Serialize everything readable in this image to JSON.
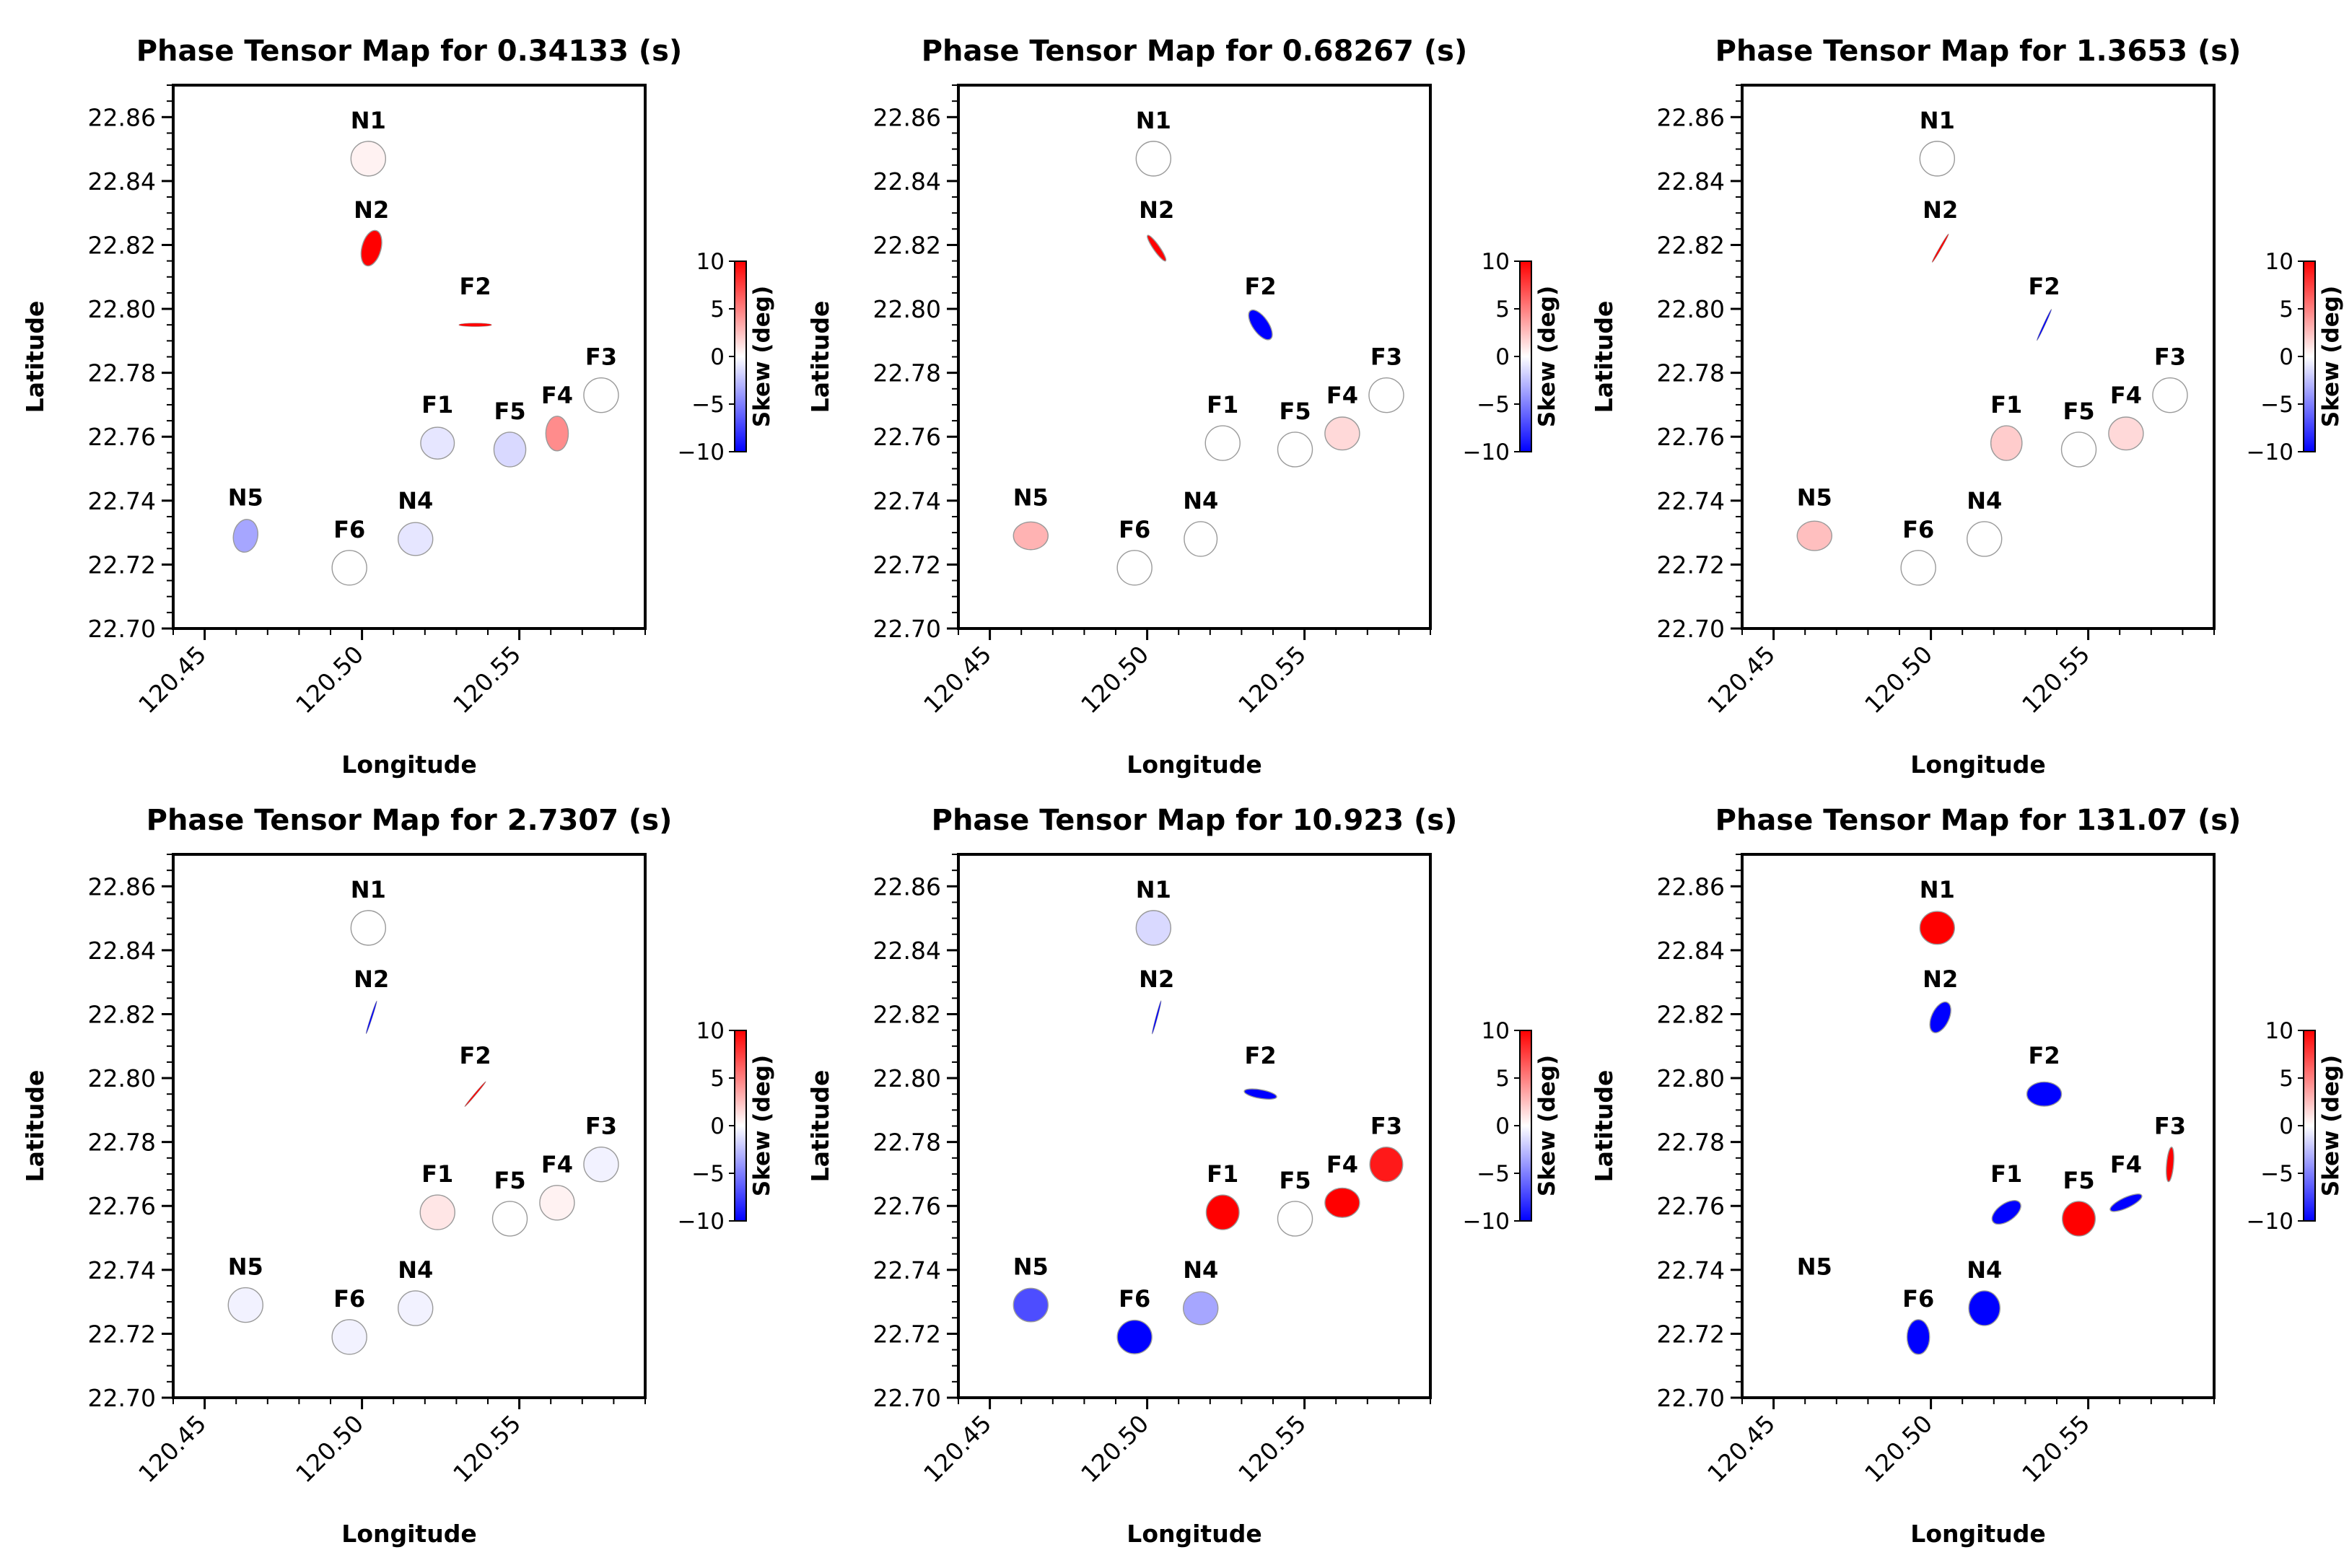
{
  "chart_data": {
    "type": "scatter",
    "shared": {
      "xlabel": "Longitude",
      "ylabel": "Latitude",
      "xlim": [
        120.44,
        120.59
      ],
      "ylim": [
        22.7,
        22.87
      ],
      "xticks": [
        120.45,
        120.5,
        120.55
      ],
      "xtick_labels": [
        "120.45",
        "120.50",
        "120.55"
      ],
      "yticks": [
        22.7,
        22.72,
        22.74,
        22.76,
        22.78,
        22.8,
        22.82,
        22.84,
        22.86
      ],
      "ytick_labels": [
        "22.70",
        "22.72",
        "22.74",
        "22.76",
        "22.78",
        "22.80",
        "22.82",
        "22.84",
        "22.86"
      ],
      "colorbar": {
        "label": "Skew (deg)",
        "range": [
          -10,
          10
        ],
        "ticks": [
          10,
          5,
          0,
          -5,
          -10
        ],
        "tick_labels": [
          "10",
          "5",
          "0",
          "−5",
          "−10"
        ],
        "colormap": [
          "#0000ff",
          "#ffffff",
          "#ff0000"
        ]
      },
      "stations": [
        {
          "name": "N1",
          "lon": 120.502,
          "lat": 22.847
        },
        {
          "name": "N2",
          "lon": 120.503,
          "lat": 22.819
        },
        {
          "name": "F2",
          "lon": 120.536,
          "lat": 22.795
        },
        {
          "name": "F3",
          "lon": 120.576,
          "lat": 22.773
        },
        {
          "name": "F1",
          "lon": 120.524,
          "lat": 22.758
        },
        {
          "name": "F5",
          "lon": 120.547,
          "lat": 22.756
        },
        {
          "name": "F4",
          "lon": 120.562,
          "lat": 22.761
        },
        {
          "name": "N5",
          "lon": 120.463,
          "lat": 22.729
        },
        {
          "name": "F6",
          "lon": 120.496,
          "lat": 22.719
        },
        {
          "name": "N4",
          "lon": 120.517,
          "lat": 22.728
        }
      ]
    },
    "panels": [
      {
        "title": "Phase Tensor Map for 0.34133 (s)",
        "period_s": 0.34133,
        "ellipses": [
          {
            "station": "N1",
            "skew": 0.5,
            "major": 1.0,
            "minor": 1.0,
            "angle": 0
          },
          {
            "station": "N2",
            "skew": 10,
            "major": 1.05,
            "minor": 0.55,
            "angle": 75
          },
          {
            "station": "F2",
            "skew": 10,
            "major": 0.95,
            "minor": 0.1,
            "angle": 0
          },
          {
            "station": "F3",
            "skew": 0,
            "major": 1.0,
            "minor": 1.0,
            "angle": 0
          },
          {
            "station": "F1",
            "skew": -1,
            "major": 0.97,
            "minor": 0.92,
            "angle": 0
          },
          {
            "station": "F5",
            "skew": -1.5,
            "major": 1.0,
            "minor": 0.92,
            "angle": 90
          },
          {
            "station": "F4",
            "skew": 4.5,
            "major": 1.0,
            "minor": 0.65,
            "angle": 90
          },
          {
            "station": "N5",
            "skew": -3.5,
            "major": 0.95,
            "minor": 0.7,
            "angle": 80
          },
          {
            "station": "F6",
            "skew": 0,
            "major": 1.0,
            "minor": 1.0,
            "angle": 0
          },
          {
            "station": "N4",
            "skew": -1,
            "major": 1.0,
            "minor": 0.95,
            "angle": 0
          }
        ]
      },
      {
        "title": "Phase Tensor Map for 0.68267 (s)",
        "period_s": 0.68267,
        "ellipses": [
          {
            "station": "N1",
            "skew": 0,
            "major": 1.0,
            "minor": 1.0,
            "angle": 0
          },
          {
            "station": "N2",
            "skew": 10,
            "major": 0.9,
            "minor": 0.18,
            "angle": -55
          },
          {
            "station": "F2",
            "skew": -10,
            "major": 1.0,
            "minor": 0.45,
            "angle": -55
          },
          {
            "station": "F3",
            "skew": 0,
            "major": 1.0,
            "minor": 1.0,
            "angle": 0
          },
          {
            "station": "F1",
            "skew": 0,
            "major": 1.0,
            "minor": 1.0,
            "angle": 0
          },
          {
            "station": "F5",
            "skew": 0,
            "major": 1.0,
            "minor": 1.0,
            "angle": 0
          },
          {
            "station": "F4",
            "skew": 1.5,
            "major": 1.0,
            "minor": 0.95,
            "angle": 0
          },
          {
            "station": "N5",
            "skew": 3,
            "major": 1.0,
            "minor": 0.8,
            "angle": 0
          },
          {
            "station": "F6",
            "skew": 0,
            "major": 1.0,
            "minor": 1.0,
            "angle": 0
          },
          {
            "station": "N4",
            "skew": 0,
            "major": 1.0,
            "minor": 0.95,
            "angle": 90
          }
        ]
      },
      {
        "title": "Phase Tensor Map for 1.3653 (s)",
        "period_s": 1.3653,
        "ellipses": [
          {
            "station": "N1",
            "skew": 0,
            "major": 1.0,
            "minor": 1.0,
            "angle": 0
          },
          {
            "station": "N2",
            "skew": 10,
            "major": 0.95,
            "minor": 0.06,
            "angle": 60
          },
          {
            "station": "F2",
            "skew": -10,
            "major": 1.0,
            "minor": 0.03,
            "angle": 65
          },
          {
            "station": "F3",
            "skew": 0,
            "major": 1.0,
            "minor": 1.0,
            "angle": 0
          },
          {
            "station": "F1",
            "skew": 2,
            "major": 1.0,
            "minor": 0.9,
            "angle": 90
          },
          {
            "station": "F5",
            "skew": 0,
            "major": 1.0,
            "minor": 1.0,
            "angle": 0
          },
          {
            "station": "F4",
            "skew": 1.5,
            "major": 1.0,
            "minor": 0.95,
            "angle": 0
          },
          {
            "station": "N5",
            "skew": 2.5,
            "major": 1.0,
            "minor": 0.85,
            "angle": 0
          },
          {
            "station": "F6",
            "skew": 0,
            "major": 1.0,
            "minor": 1.0,
            "angle": 0
          },
          {
            "station": "N4",
            "skew": 0,
            "major": 1.0,
            "minor": 1.0,
            "angle": 0
          }
        ]
      },
      {
        "title": "Phase Tensor Map for 2.7307 (s)",
        "period_s": 2.7307,
        "ellipses": [
          {
            "station": "N1",
            "skew": 0,
            "major": 1.0,
            "minor": 1.0,
            "angle": 0
          },
          {
            "station": "N2",
            "skew": -10,
            "major": 1.0,
            "minor": 0.03,
            "angle": 72
          },
          {
            "station": "F2",
            "skew": 10,
            "major": 0.95,
            "minor": 0.05,
            "angle": 50
          },
          {
            "station": "F3",
            "skew": -0.5,
            "major": 1.0,
            "minor": 1.0,
            "angle": 0
          },
          {
            "station": "F1",
            "skew": 1,
            "major": 1.0,
            "minor": 1.0,
            "angle": 0
          },
          {
            "station": "F5",
            "skew": 0,
            "major": 1.0,
            "minor": 1.0,
            "angle": 0
          },
          {
            "station": "F4",
            "skew": 0.5,
            "major": 1.0,
            "minor": 1.0,
            "angle": 0
          },
          {
            "station": "N5",
            "skew": -0.5,
            "major": 1.0,
            "minor": 1.0,
            "angle": 0
          },
          {
            "station": "F6",
            "skew": -0.5,
            "major": 1.0,
            "minor": 1.0,
            "angle": 0
          },
          {
            "station": "N4",
            "skew": -0.5,
            "major": 1.0,
            "minor": 1.0,
            "angle": 0
          }
        ]
      },
      {
        "title": "Phase Tensor Map for 10.923 (s)",
        "period_s": 10.923,
        "ellipses": [
          {
            "station": "N1",
            "skew": -1.5,
            "major": 1.0,
            "minor": 1.0,
            "angle": 0
          },
          {
            "station": "N2",
            "skew": -10,
            "major": 1.0,
            "minor": 0.04,
            "angle": 75
          },
          {
            "station": "F2",
            "skew": -10,
            "major": 0.95,
            "minor": 0.25,
            "angle": -10
          },
          {
            "station": "F3",
            "skew": 9,
            "major": 1.0,
            "minor": 0.95,
            "angle": 90
          },
          {
            "station": "F1",
            "skew": 10,
            "major": 1.0,
            "minor": 0.95,
            "angle": 90
          },
          {
            "station": "F5",
            "skew": 0,
            "major": 1.0,
            "minor": 1.0,
            "angle": 0
          },
          {
            "station": "F4",
            "skew": 10,
            "major": 1.0,
            "minor": 0.85,
            "angle": 0
          },
          {
            "station": "N5",
            "skew": -7,
            "major": 1.0,
            "minor": 0.97,
            "angle": 0
          },
          {
            "station": "F6",
            "skew": -10,
            "major": 1.0,
            "minor": 0.97,
            "angle": 0
          },
          {
            "station": "N4",
            "skew": -3.5,
            "major": 1.0,
            "minor": 0.95,
            "angle": 0
          }
        ]
      },
      {
        "title": "Phase Tensor Map for 131.07 (s)",
        "period_s": 131.07,
        "ellipses": [
          {
            "station": "N1",
            "skew": 10,
            "major": 1.0,
            "minor": 0.95,
            "angle": 0
          },
          {
            "station": "N2",
            "skew": -10,
            "major": 0.95,
            "minor": 0.5,
            "angle": 65
          },
          {
            "station": "F2",
            "skew": -10,
            "major": 1.0,
            "minor": 0.7,
            "angle": 0
          },
          {
            "station": "F3",
            "skew": 10,
            "major": 1.0,
            "minor": 0.2,
            "angle": 85
          },
          {
            "station": "F1",
            "skew": -10,
            "major": 0.95,
            "minor": 0.5,
            "angle": 35
          },
          {
            "station": "F5",
            "skew": 10,
            "major": 1.0,
            "minor": 0.95,
            "angle": 90
          },
          {
            "station": "F4",
            "skew": -10,
            "major": 1.0,
            "minor": 0.3,
            "angle": 25
          },
          {
            "station": "F6",
            "skew": -10,
            "major": 1.0,
            "minor": 0.65,
            "angle": 90
          },
          {
            "station": "N4",
            "skew": -10,
            "major": 1.0,
            "minor": 0.9,
            "angle": 90
          }
        ]
      }
    ]
  }
}
